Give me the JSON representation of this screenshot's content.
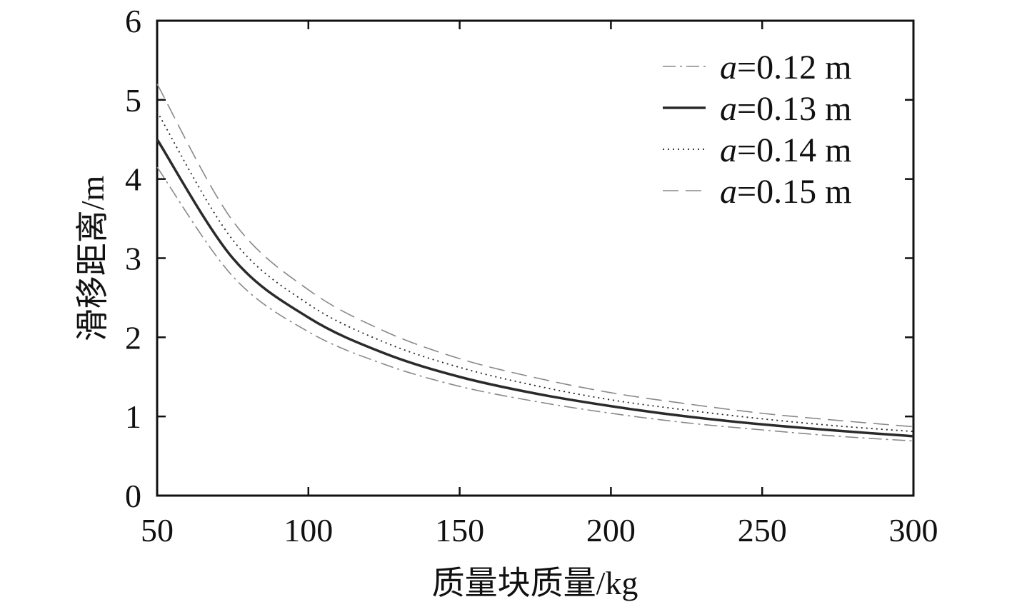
{
  "chart_data": {
    "type": "line",
    "xlabel": "质量块质量/kg",
    "ylabel": "滑移距离/m",
    "xlim": [
      50,
      300
    ],
    "ylim": [
      0,
      6
    ],
    "xticks": [
      50,
      100,
      150,
      200,
      250,
      300
    ],
    "yticks": [
      0,
      1,
      2,
      3,
      4,
      5,
      6
    ],
    "xtick_labels": [
      "50",
      "100",
      "150",
      "200",
      "250",
      "300"
    ],
    "ytick_labels": [
      "0",
      "1",
      "2",
      "3",
      "4",
      "5",
      "6"
    ],
    "grid": false,
    "legend_position": "top-right",
    "x": [
      50,
      75,
      100,
      125,
      150,
      175,
      200,
      225,
      250,
      275,
      300
    ],
    "series": [
      {
        "name": "a=0.12 m",
        "name_var": "a",
        "name_rest": "=0.12 m",
        "style": "dashdot",
        "color": "#888888",
        "values": [
          4.15,
          2.77,
          2.07,
          1.66,
          1.38,
          1.19,
          1.04,
          0.92,
          0.83,
          0.75,
          0.69
        ]
      },
      {
        "name": "a=0.13 m",
        "name_var": "a",
        "name_rest": "=0.13 m",
        "style": "solid",
        "color": "#2a2a2a",
        "values": [
          4.5,
          3.0,
          2.25,
          1.8,
          1.5,
          1.29,
          1.13,
          1.0,
          0.9,
          0.82,
          0.75
        ]
      },
      {
        "name": "a=0.14 m",
        "name_var": "a",
        "name_rest": "=0.14 m",
        "style": "dotted",
        "color": "#222222",
        "values": [
          4.85,
          3.23,
          2.42,
          1.94,
          1.62,
          1.39,
          1.21,
          1.08,
          0.97,
          0.88,
          0.81
        ]
      },
      {
        "name": "a=0.15 m",
        "name_var": "a",
        "name_rest": "=0.15 m",
        "style": "dashed",
        "color": "#888888",
        "values": [
          5.2,
          3.47,
          2.6,
          2.08,
          1.73,
          1.49,
          1.3,
          1.16,
          1.04,
          0.95,
          0.87
        ]
      }
    ]
  }
}
